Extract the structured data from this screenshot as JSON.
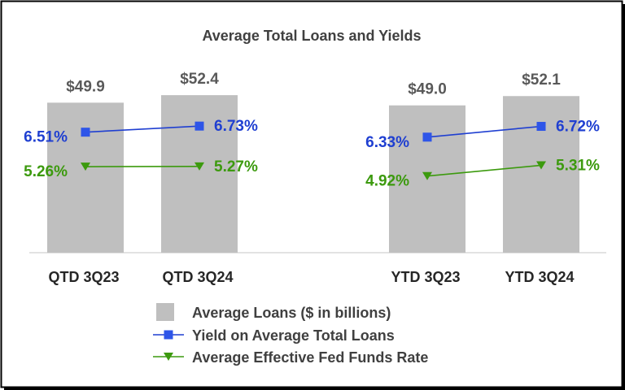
{
  "chart_data": {
    "type": "bar",
    "title": "Average Total Loans and Yields",
    "categories": [
      "QTD 3Q23",
      "QTD 3Q24",
      "YTD 3Q23",
      "YTD 3Q24"
    ],
    "series": [
      {
        "name": "Average Loans ($ in billions)",
        "kind": "bar",
        "values": [
          49.9,
          52.4,
          49.0,
          52.1
        ],
        "labels": [
          "$49.9",
          "$52.4",
          "$49.0",
          "$52.1"
        ],
        "color": "#bfbfbf"
      },
      {
        "name": "Yield on Average Total Loans",
        "kind": "line",
        "marker": "square",
        "values": [
          6.51,
          6.73,
          6.33,
          6.72
        ],
        "labels": [
          "6.51%",
          "6.73%",
          "6.33%",
          "6.72%"
        ],
        "color": "#1f3fd1",
        "markerColor": "#2e55e8"
      },
      {
        "name": "Average Effective Fed Funds Rate",
        "kind": "line",
        "marker": "triangle-down",
        "values": [
          5.26,
          5.27,
          4.92,
          5.31
        ],
        "labels": [
          "5.26%",
          "5.27%",
          "4.92%",
          "5.31%"
        ],
        "color": "#3c9a0e"
      }
    ],
    "line_groups": [
      [
        0,
        1
      ],
      [
        2,
        3
      ]
    ],
    "legend_position": "bottom",
    "grid": false
  }
}
